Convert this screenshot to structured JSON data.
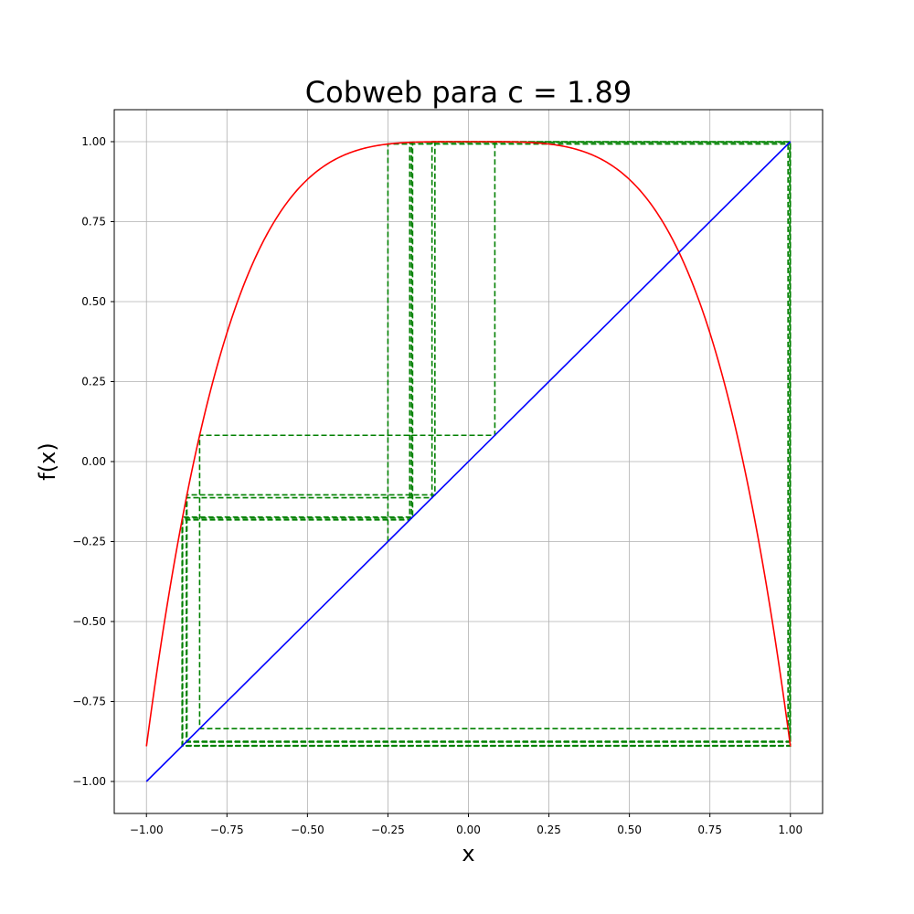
{
  "chart_data": {
    "type": "line",
    "title": "Cobweb para c = 1.89",
    "xlabel": "x",
    "ylabel": "f(x)",
    "xlim": [
      -1.1,
      1.1
    ],
    "ylim": [
      -1.1,
      1.1
    ],
    "grid": true,
    "x_ticks": [
      -1.0,
      -0.75,
      -0.5,
      -0.25,
      0.0,
      0.25,
      0.5,
      0.75,
      1.0
    ],
    "y_ticks": [
      -1.0,
      -0.75,
      -0.5,
      -0.25,
      0.0,
      0.25,
      0.5,
      0.75,
      1.0
    ],
    "x_tick_labels": [
      "−1.00",
      "−0.75",
      "−0.50",
      "−0.25",
      "0.00",
      "0.25",
      "0.50",
      "0.75",
      "1.00"
    ],
    "y_tick_labels": [
      "−1.00",
      "−0.75",
      "−0.50",
      "−0.25",
      "0.00",
      "0.25",
      "0.50",
      "0.75",
      "1.00"
    ],
    "function": {
      "formula": "f(x) = 1 - c*x^4",
      "c": 1.89,
      "domain": [
        -1.0,
        1.0
      ],
      "color": "#ff0000"
    },
    "identity_line": {
      "formula": "y = x",
      "domain": [
        -1.0,
        1.0
      ],
      "color": "#0000ff"
    },
    "cobweb": {
      "color": "#008000",
      "style": "dashed",
      "x0": -0.25,
      "iterations": 20
    }
  }
}
